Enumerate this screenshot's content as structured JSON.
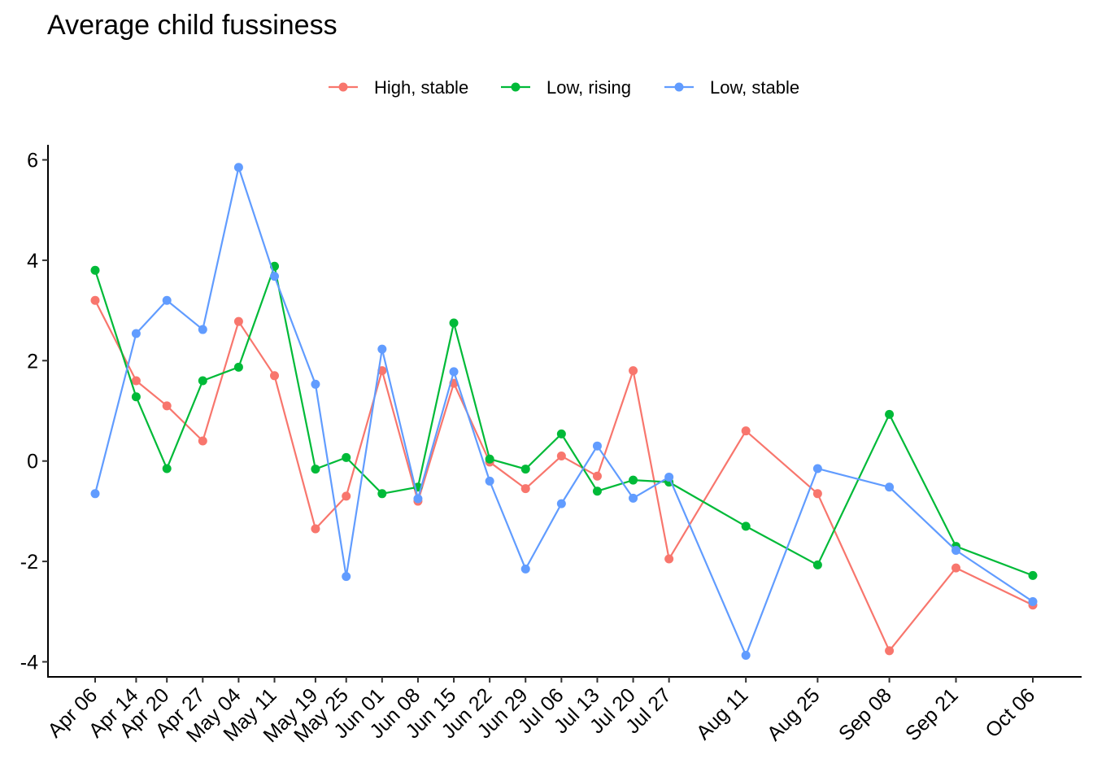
{
  "chart_data": {
    "type": "line",
    "title": "Average child fussiness",
    "xlabel": "",
    "ylabel": "",
    "legend_position": "top",
    "grid": false,
    "ylim": [
      -4.3,
      6.3
    ],
    "y_ticks": [
      -4,
      -2,
      0,
      2,
      4,
      6
    ],
    "x_tick_labels": [
      "Apr 06",
      "Apr 14",
      "Apr 20",
      "Apr 27",
      "May 04",
      "May 11",
      "May 19",
      "May 25",
      "Jun 01",
      "Jun 08",
      "Jun 15",
      "Jun 22",
      "Jun 29",
      "Jul 06",
      "Jul 13",
      "Jul 20",
      "Jul 27",
      "Aug 11",
      "Aug 25",
      "Sep 08",
      "Sep 21",
      "Oct 06"
    ],
    "x": [
      "2024-04-06",
      "2024-04-14",
      "2024-04-20",
      "2024-04-27",
      "2024-05-04",
      "2024-05-11",
      "2024-05-19",
      "2024-05-25",
      "2024-06-01",
      "2024-06-08",
      "2024-06-15",
      "2024-06-22",
      "2024-06-29",
      "2024-07-06",
      "2024-07-13",
      "2024-07-20",
      "2024-07-27",
      "2024-08-11",
      "2024-08-25",
      "2024-09-08",
      "2024-09-21",
      "2024-10-06"
    ],
    "series": [
      {
        "name": "High, stable",
        "color": "#F8766D",
        "values": [
          3.2,
          1.6,
          1.1,
          0.4,
          2.78,
          1.7,
          -1.35,
          -0.7,
          1.8,
          -0.8,
          1.55,
          -0.02,
          -0.55,
          0.1,
          -0.3,
          1.8,
          -1.95,
          0.6,
          -0.65,
          -3.78,
          -2.13,
          -2.87
        ]
      },
      {
        "name": "Low, rising",
        "color": "#00BA38",
        "values": [
          3.8,
          1.28,
          -0.15,
          1.6,
          1.87,
          3.88,
          -0.16,
          0.07,
          -0.65,
          -0.52,
          2.75,
          0.04,
          -0.16,
          0.54,
          -0.6,
          -0.38,
          -0.42,
          -1.3,
          -2.07,
          0.93,
          -1.7,
          -2.28
        ]
      },
      {
        "name": "Low, stable",
        "color": "#619CFF",
        "values": [
          -0.65,
          2.54,
          3.2,
          2.62,
          5.85,
          3.68,
          1.53,
          -2.3,
          2.23,
          -0.75,
          1.78,
          -0.4,
          -2.15,
          -0.85,
          0.3,
          -0.74,
          -0.32,
          -3.87,
          -0.15,
          -0.52,
          -1.78,
          -2.8
        ]
      }
    ]
  }
}
